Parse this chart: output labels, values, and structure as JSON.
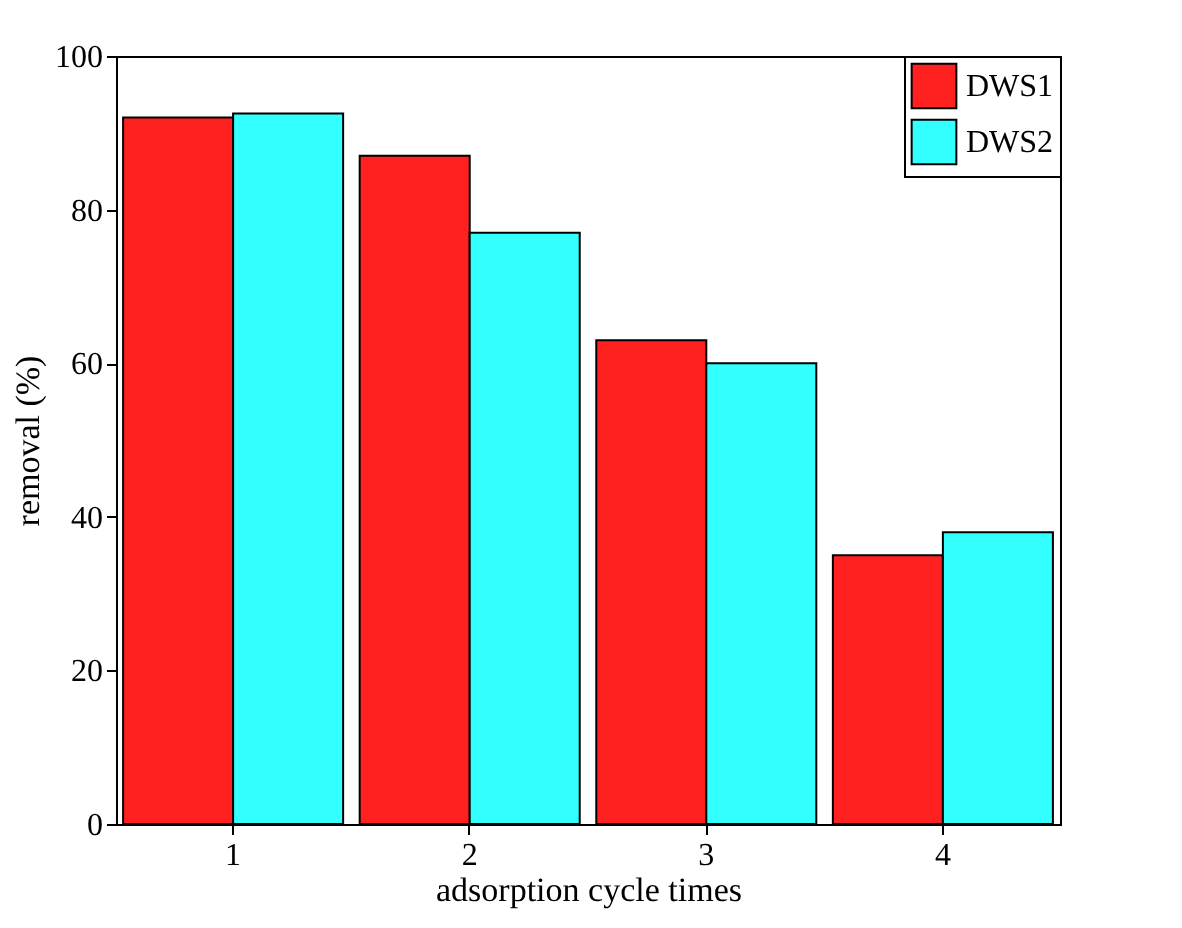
{
  "chart_data": {
    "type": "bar",
    "xlabel": "adsorption cycle times",
    "ylabel": "removal (%)",
    "categories": [
      "1",
      "2",
      "3",
      "4"
    ],
    "series": [
      {
        "name": "DWS1",
        "color": "#ff2020",
        "values": [
          92,
          87,
          63,
          35
        ]
      },
      {
        "name": "DWS2",
        "color": "#33ffff",
        "values": [
          92.5,
          77,
          60,
          38
        ]
      }
    ],
    "ylim": [
      0,
      100
    ],
    "yticks": [
      0,
      20,
      40,
      60,
      80,
      100
    ],
    "grid": false,
    "legend": "top right"
  }
}
